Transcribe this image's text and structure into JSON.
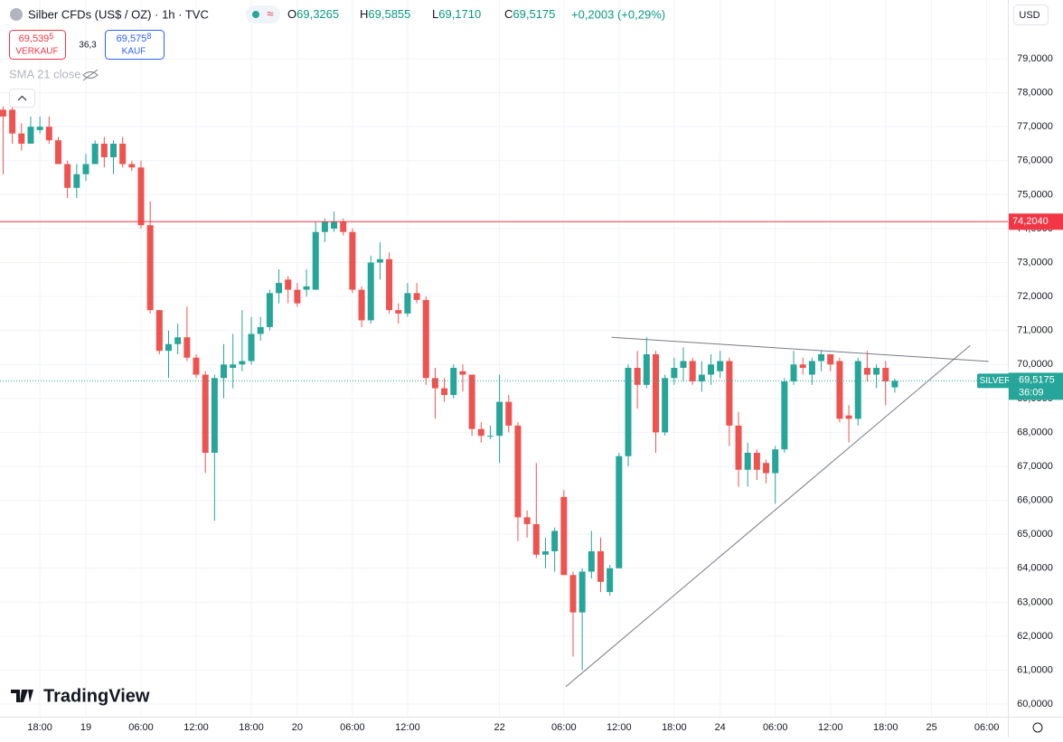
{
  "header": {
    "title": "Silber CFDs (US$ / OZ) · 1h · TVC",
    "ohlc": [
      {
        "prefix": "O",
        "value": "69,3265"
      },
      {
        "prefix": "H",
        "value": "69,5855"
      },
      {
        "prefix": "L",
        "value": "69,1710"
      },
      {
        "prefix": "C",
        "value": "69,5175"
      }
    ],
    "change": "+0,2003 (+0,29%)",
    "sell": {
      "price": "69,539",
      "small": "5",
      "label": "VERKAUF"
    },
    "spread": "36,3",
    "buy": {
      "price": "69,575",
      "small": "8",
      "label": "KAUF"
    },
    "indicator": "SMA 21 close",
    "currency": "USD",
    "logo": "TradingView"
  },
  "chart_data": {
    "type": "candlestick",
    "up_color": "#26a69a",
    "down_color": "#ef5350",
    "grid": true,
    "open": [
      77.5,
      77.5,
      76.8,
      76.5,
      76.9,
      77.0,
      76.6,
      75.9,
      75.2,
      75.6,
      75.9,
      76.5,
      76.1,
      76.5,
      75.9,
      75.8,
      74.1,
      71.6,
      70.4,
      70.6,
      70.8,
      70.2,
      69.7,
      67.4,
      69.6,
      69.9,
      70.0,
      70.1,
      70.9,
      71.1,
      72.1,
      72.5,
      72.2,
      72.2,
      72.2,
      73.9,
      74.0,
      74.2,
      73.9,
      72.2,
      71.3,
      73.0,
      73.1,
      71.6,
      71.5,
      72.1,
      71.9,
      69.6,
      69.3,
      69.1,
      69.8,
      69.7,
      68.1,
      67.9,
      67.9,
      68.9,
      68.2,
      65.5,
      65.3,
      64.4,
      64.5,
      66.1,
      63.8,
      62.7,
      63.9,
      64.5,
      63.3,
      64.0,
      67.3,
      69.9,
      69.4,
      70.3,
      68.0,
      69.6,
      69.9,
      70.1,
      69.5,
      69.7,
      69.8,
      70.1,
      68.2,
      66.9,
      67.4,
      67.1,
      66.8,
      67.5,
      69.5,
      70.0,
      69.7,
      70.1,
      70.3,
      70.1,
      68.5,
      68.4,
      69.9,
      69.7,
      69.9,
      69.3265
    ],
    "high": [
      77.6,
      77.6,
      77.1,
      77.3,
      77.3,
      77.3,
      76.7,
      76.0,
      75.9,
      76.2,
      76.6,
      76.7,
      76.6,
      76.7,
      76.0,
      76.0,
      74.8,
      71.6,
      71.0,
      71.2,
      71.7,
      70.3,
      69.8,
      69.7,
      70.6,
      70.9,
      71.6,
      71.4,
      71.4,
      72.2,
      72.8,
      72.6,
      72.4,
      72.8,
      74.2,
      74.3,
      74.5,
      74.3,
      74.0,
      72.3,
      73.2,
      73.6,
      73.3,
      71.8,
      72.4,
      72.4,
      72.0,
      69.9,
      69.6,
      70.0,
      70.0,
      69.7,
      68.3,
      68.2,
      69.7,
      69.1,
      68.3,
      65.7,
      67.1,
      64.9,
      65.2,
      66.3,
      63.9,
      64.0,
      65.1,
      64.9,
      64.1,
      67.4,
      70.0,
      70.4,
      70.8,
      70.4,
      69.7,
      70.2,
      70.5,
      70.2,
      70.1,
      70.3,
      70.4,
      70.2,
      68.6,
      67.7,
      67.5,
      67.2,
      67.6,
      69.6,
      70.4,
      70.2,
      70.2,
      70.4,
      70.3,
      70.2,
      68.8,
      70.2,
      70.4,
      70.0,
      70.1,
      69.5855
    ],
    "low": [
      75.6,
      76.5,
      76.3,
      76.5,
      76.8,
      76.5,
      75.9,
      74.9,
      74.9,
      75.4,
      75.9,
      75.8,
      75.6,
      75.8,
      75.7,
      74.0,
      71.5,
      70.3,
      69.6,
      70.3,
      70.1,
      69.6,
      66.8,
      65.4,
      69.0,
      69.3,
      69.8,
      70.0,
      70.7,
      71.0,
      71.8,
      71.8,
      71.7,
      72.0,
      72.2,
      73.6,
      73.9,
      73.8,
      72.1,
      71.1,
      71.2,
      72.5,
      71.5,
      71.2,
      71.4,
      71.8,
      69.4,
      68.4,
      68.9,
      69.0,
      69.2,
      67.9,
      67.7,
      67.8,
      67.1,
      68.0,
      64.8,
      64.9,
      64.3,
      64.0,
      63.9,
      63.8,
      61.4,
      61.0,
      63.7,
      63.3,
      63.2,
      64.0,
      67.0,
      68.7,
      69.3,
      67.4,
      67.9,
      69.4,
      69.5,
      69.4,
      69.2,
      69.4,
      69.6,
      67.6,
      66.4,
      66.4,
      66.6,
      66.5,
      65.9,
      67.4,
      69.4,
      69.7,
      69.4,
      69.8,
      69.8,
      68.3,
      67.7,
      68.2,
      69.5,
      69.3,
      68.8,
      69.171
    ],
    "close": [
      77.3,
      76.8,
      76.5,
      77.0,
      77.0,
      76.6,
      75.9,
      75.2,
      75.6,
      75.9,
      76.5,
      76.1,
      76.5,
      75.9,
      75.8,
      74.1,
      71.6,
      70.4,
      70.6,
      70.8,
      70.2,
      69.7,
      67.4,
      69.6,
      70.0,
      70.0,
      70.1,
      70.9,
      71.1,
      72.1,
      72.4,
      72.2,
      71.8,
      72.3,
      73.9,
      74.2,
      74.2,
      73.9,
      72.2,
      71.3,
      73.0,
      73.1,
      71.6,
      71.5,
      72.1,
      71.9,
      69.6,
      69.3,
      69.1,
      69.9,
      69.7,
      68.1,
      67.9,
      67.9,
      68.9,
      68.2,
      65.5,
      65.3,
      64.4,
      64.5,
      65.1,
      63.8,
      62.7,
      63.9,
      64.5,
      63.6,
      64.0,
      67.3,
      69.9,
      69.4,
      70.3,
      68.0,
      69.6,
      69.9,
      70.1,
      69.5,
      69.7,
      70.0,
      70.1,
      68.2,
      66.9,
      67.4,
      66.9,
      66.8,
      67.5,
      69.5,
      70.0,
      69.9,
      70.1,
      70.3,
      70.0,
      68.4,
      68.4,
      70.1,
      69.7,
      69.9,
      69.5,
      69.5175
    ],
    "xlim": [
      -0.34,
      109.3
    ],
    "xticks": [
      {
        "value": 4,
        "label": "18:00"
      },
      {
        "value": 9,
        "label": "19"
      },
      {
        "value": 15,
        "label": "06:00"
      },
      {
        "value": 21,
        "label": "12:00"
      },
      {
        "value": 27,
        "label": "18:00"
      },
      {
        "value": 32,
        "label": "20"
      },
      {
        "value": 38,
        "label": "06:00"
      },
      {
        "value": 44,
        "label": "12:00"
      },
      {
        "value": 54,
        "label": "22"
      },
      {
        "value": 61,
        "label": "06:00"
      },
      {
        "value": 67,
        "label": "12:00"
      },
      {
        "value": 73,
        "label": "18:00"
      },
      {
        "value": 78,
        "label": "24"
      },
      {
        "value": 84,
        "label": "06:00"
      },
      {
        "value": 90,
        "label": "12:00"
      },
      {
        "value": 96,
        "label": "18:00"
      },
      {
        "value": 101,
        "label": "25"
      },
      {
        "value": 107,
        "label": "06:00"
      }
    ],
    "ylim": [
      59.63,
      80.73
    ],
    "yticks": [
      {
        "value": 60,
        "label": "60,0000"
      },
      {
        "value": 61,
        "label": "61,0000"
      },
      {
        "value": 62,
        "label": "62,0000"
      },
      {
        "value": 63,
        "label": "63,0000"
      },
      {
        "value": 64,
        "label": "64,0000"
      },
      {
        "value": 65,
        "label": "65,0000"
      },
      {
        "value": 66,
        "label": "66,0000"
      },
      {
        "value": 67,
        "label": "67,0000"
      },
      {
        "value": 68,
        "label": "68,0000"
      },
      {
        "value": 69,
        "label": "69,0000"
      },
      {
        "value": 70,
        "label": "70,0000"
      },
      {
        "value": 71,
        "label": "71,0000"
      },
      {
        "value": 72,
        "label": "72,0000"
      },
      {
        "value": 73,
        "label": "73,0000"
      },
      {
        "value": 74,
        "label": "74,0000"
      },
      {
        "value": 75,
        "label": "75,0000"
      },
      {
        "value": 76,
        "label": "76,0000"
      },
      {
        "value": 77,
        "label": "77,0000"
      },
      {
        "value": 78,
        "label": "78,0000"
      },
      {
        "value": 79,
        "label": "79,0000"
      }
    ],
    "horizontal_line": {
      "value": 74.204,
      "label": "74,2040",
      "color": "#f23645"
    },
    "last_price": {
      "symbol": "SILVER",
      "label": "69,5175",
      "countdown": "36:09",
      "color": "#26a69a"
    },
    "trend_lines": [
      {
        "x": [
          66.2,
          107.2
        ],
        "y": [
          70.8,
          70.09
        ]
      },
      {
        "x": [
          61.2,
          105.2
        ],
        "y": [
          60.51,
          70.56
        ]
      }
    ]
  }
}
